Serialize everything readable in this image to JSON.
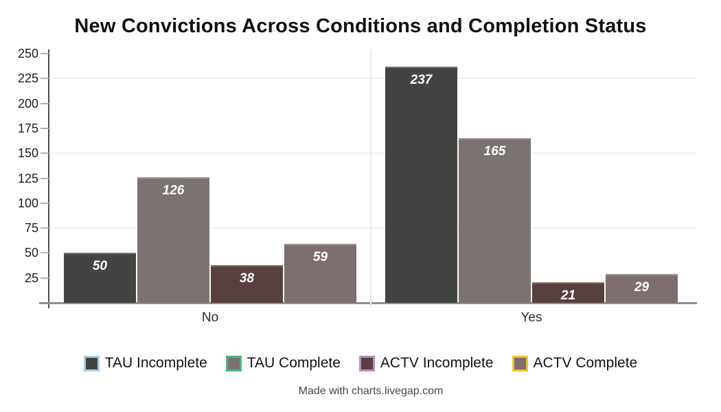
{
  "title": "New Convictions Across Conditions and Completion Status",
  "credit": "Made with charts.livegap.com",
  "chart_data": {
    "type": "bar",
    "title": "New Convictions Across Conditions and Completion Status",
    "categories": [
      "No",
      "Yes"
    ],
    "series": [
      {
        "name": "TAU Incomplete",
        "values": [
          50,
          237
        ],
        "color": "#434342",
        "legend_border": "#a6cde8"
      },
      {
        "name": "TAU Complete",
        "values": [
          126,
          165
        ],
        "color": "#7a7371",
        "legend_border": "#4cb87f"
      },
      {
        "name": "ACTV Incomplete",
        "values": [
          38,
          21
        ],
        "color": "#574140",
        "legend_border": "#b48fc6"
      },
      {
        "name": "ACTV Complete",
        "values": [
          59,
          29
        ],
        "color": "#7d6f6e",
        "legend_border": "#eec32d"
      }
    ],
    "xlabel": "",
    "ylabel": "",
    "ylim": [
      0,
      250
    ],
    "yticks": [
      25,
      50,
      75,
      100,
      125,
      150,
      175,
      200,
      225,
      250
    ],
    "gridline_values": [
      75,
      150,
      225
    ],
    "grid": "sparse-horizontal",
    "bar_value_labels": true,
    "legend_position": "bottom"
  }
}
